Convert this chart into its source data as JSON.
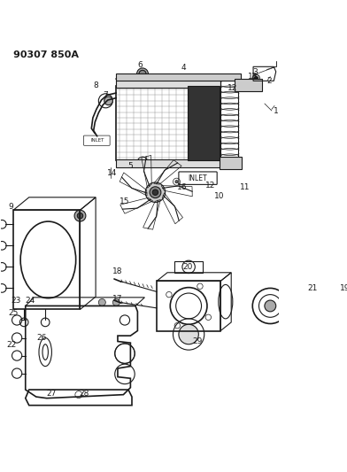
{
  "title_code": "90307 850A",
  "bg_color": "#ffffff",
  "line_color": "#1a1a1a",
  "font_size_code": 8,
  "font_size_labels": 6.5
}
